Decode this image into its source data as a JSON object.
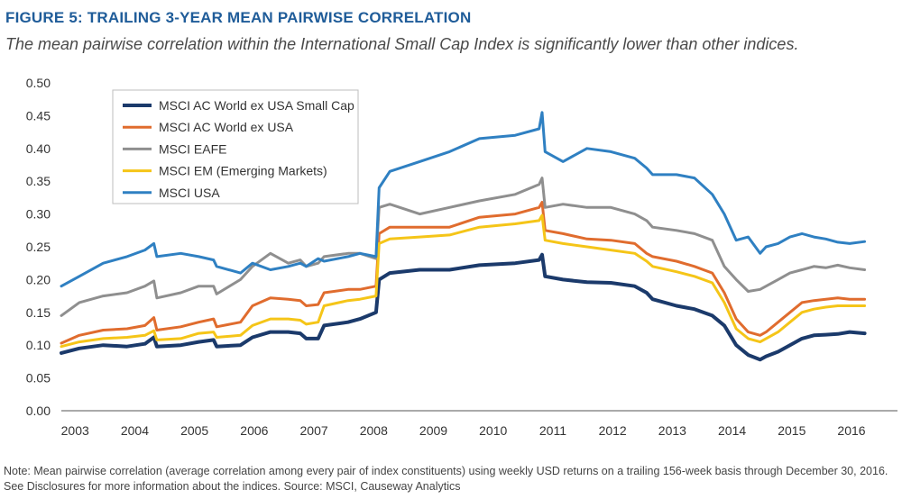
{
  "figure": {
    "title": "FIGURE 5: TRAILING 3-YEAR MEAN PAIRWISE CORRELATION",
    "subtitle": "The mean pairwise correlation within the International Small Cap Index is significantly lower than other indices.",
    "note": "Note: Mean pairwise correlation (average correlation among every pair of index constituents) using weekly USD returns on a trailing 156-week basis through December 30, 2016. See Disclosures for more information about the indices. Source: MSCI, Causeway Analytics"
  },
  "chart_data": {
    "type": "line",
    "title": "FIGURE 5: TRAILING 3-YEAR MEAN PAIRWISE CORRELATION",
    "xlabel": "",
    "ylabel": "",
    "ylim": [
      0,
      0.5
    ],
    "yticks": [
      "0.00",
      "0.05",
      "0.10",
      "0.15",
      "0.20",
      "0.25",
      "0.30",
      "0.35",
      "0.40",
      "0.45",
      "0.50"
    ],
    "xlim": [
      2003,
      2017
    ],
    "xticks": [
      "2003",
      "2004",
      "2005",
      "2006",
      "2007",
      "2008",
      "2009",
      "2010",
      "2011",
      "2012",
      "2013",
      "2014",
      "2015",
      "2016"
    ],
    "grid": false,
    "legend": "top-left",
    "series": [
      {
        "name": "MSCI AC World ex USA Small Cap",
        "color": "#1b3a6b",
        "points": [
          [
            2003.0,
            0.088
          ],
          [
            2003.3,
            0.095
          ],
          [
            2003.7,
            0.1
          ],
          [
            2004.1,
            0.098
          ],
          [
            2004.4,
            0.102
          ],
          [
            2004.55,
            0.112
          ],
          [
            2004.6,
            0.098
          ],
          [
            2005.0,
            0.1
          ],
          [
            2005.3,
            0.105
          ],
          [
            2005.55,
            0.108
          ],
          [
            2005.6,
            0.098
          ],
          [
            2006.0,
            0.1
          ],
          [
            2006.2,
            0.112
          ],
          [
            2006.5,
            0.12
          ],
          [
            2006.8,
            0.12
          ],
          [
            2007.0,
            0.118
          ],
          [
            2007.1,
            0.11
          ],
          [
            2007.3,
            0.11
          ],
          [
            2007.4,
            0.13
          ],
          [
            2007.8,
            0.135
          ],
          [
            2008.0,
            0.14
          ],
          [
            2008.27,
            0.15
          ],
          [
            2008.32,
            0.2
          ],
          [
            2008.5,
            0.21
          ],
          [
            2009.0,
            0.215
          ],
          [
            2009.5,
            0.215
          ],
          [
            2010.0,
            0.222
          ],
          [
            2010.6,
            0.225
          ],
          [
            2011.0,
            0.23
          ],
          [
            2011.05,
            0.238
          ],
          [
            2011.1,
            0.205
          ],
          [
            2011.4,
            0.2
          ],
          [
            2011.8,
            0.196
          ],
          [
            2012.2,
            0.195
          ],
          [
            2012.6,
            0.19
          ],
          [
            2012.8,
            0.18
          ],
          [
            2012.9,
            0.17
          ],
          [
            2013.3,
            0.16
          ],
          [
            2013.6,
            0.155
          ],
          [
            2013.9,
            0.145
          ],
          [
            2014.1,
            0.13
          ],
          [
            2014.3,
            0.1
          ],
          [
            2014.5,
            0.085
          ],
          [
            2014.7,
            0.078
          ],
          [
            2014.8,
            0.083
          ],
          [
            2015.0,
            0.09
          ],
          [
            2015.2,
            0.1
          ],
          [
            2015.4,
            0.11
          ],
          [
            2015.6,
            0.115
          ],
          [
            2015.8,
            0.116
          ],
          [
            2016.0,
            0.117
          ],
          [
            2016.2,
            0.12
          ],
          [
            2016.45,
            0.118
          ]
        ]
      },
      {
        "name": "MSCI AC World ex USA",
        "color": "#e06c2e",
        "points": [
          [
            2003.0,
            0.103
          ],
          [
            2003.3,
            0.115
          ],
          [
            2003.7,
            0.123
          ],
          [
            2004.1,
            0.125
          ],
          [
            2004.4,
            0.13
          ],
          [
            2004.55,
            0.142
          ],
          [
            2004.6,
            0.123
          ],
          [
            2005.0,
            0.128
          ],
          [
            2005.3,
            0.135
          ],
          [
            2005.55,
            0.14
          ],
          [
            2005.6,
            0.128
          ],
          [
            2006.0,
            0.135
          ],
          [
            2006.2,
            0.16
          ],
          [
            2006.5,
            0.172
          ],
          [
            2006.8,
            0.17
          ],
          [
            2007.0,
            0.168
          ],
          [
            2007.1,
            0.16
          ],
          [
            2007.3,
            0.162
          ],
          [
            2007.4,
            0.18
          ],
          [
            2007.8,
            0.185
          ],
          [
            2008.0,
            0.185
          ],
          [
            2008.27,
            0.19
          ],
          [
            2008.32,
            0.27
          ],
          [
            2008.5,
            0.28
          ],
          [
            2009.0,
            0.28
          ],
          [
            2009.5,
            0.28
          ],
          [
            2010.0,
            0.295
          ],
          [
            2010.6,
            0.3
          ],
          [
            2011.0,
            0.31
          ],
          [
            2011.05,
            0.318
          ],
          [
            2011.1,
            0.275
          ],
          [
            2011.4,
            0.27
          ],
          [
            2011.8,
            0.262
          ],
          [
            2012.2,
            0.26
          ],
          [
            2012.6,
            0.255
          ],
          [
            2012.8,
            0.24
          ],
          [
            2012.9,
            0.235
          ],
          [
            2013.3,
            0.228
          ],
          [
            2013.6,
            0.22
          ],
          [
            2013.9,
            0.21
          ],
          [
            2014.1,
            0.18
          ],
          [
            2014.3,
            0.14
          ],
          [
            2014.5,
            0.12
          ],
          [
            2014.7,
            0.115
          ],
          [
            2014.8,
            0.12
          ],
          [
            2015.0,
            0.135
          ],
          [
            2015.2,
            0.15
          ],
          [
            2015.4,
            0.165
          ],
          [
            2015.6,
            0.168
          ],
          [
            2015.8,
            0.17
          ],
          [
            2016.0,
            0.172
          ],
          [
            2016.2,
            0.17
          ],
          [
            2016.45,
            0.17
          ]
        ]
      },
      {
        "name": "MSCI EAFE",
        "color": "#8f8f8f",
        "points": [
          [
            2003.0,
            0.145
          ],
          [
            2003.3,
            0.165
          ],
          [
            2003.7,
            0.175
          ],
          [
            2004.1,
            0.18
          ],
          [
            2004.4,
            0.19
          ],
          [
            2004.55,
            0.198
          ],
          [
            2004.6,
            0.172
          ],
          [
            2005.0,
            0.18
          ],
          [
            2005.3,
            0.19
          ],
          [
            2005.55,
            0.19
          ],
          [
            2005.6,
            0.178
          ],
          [
            2006.0,
            0.2
          ],
          [
            2006.2,
            0.22
          ],
          [
            2006.5,
            0.24
          ],
          [
            2006.8,
            0.225
          ],
          [
            2007.0,
            0.23
          ],
          [
            2007.1,
            0.22
          ],
          [
            2007.3,
            0.225
          ],
          [
            2007.4,
            0.235
          ],
          [
            2007.8,
            0.24
          ],
          [
            2008.0,
            0.24
          ],
          [
            2008.27,
            0.232
          ],
          [
            2008.32,
            0.31
          ],
          [
            2008.5,
            0.315
          ],
          [
            2009.0,
            0.3
          ],
          [
            2009.5,
            0.31
          ],
          [
            2010.0,
            0.32
          ],
          [
            2010.6,
            0.33
          ],
          [
            2011.0,
            0.345
          ],
          [
            2011.05,
            0.355
          ],
          [
            2011.1,
            0.31
          ],
          [
            2011.4,
            0.315
          ],
          [
            2011.8,
            0.31
          ],
          [
            2012.2,
            0.31
          ],
          [
            2012.6,
            0.3
          ],
          [
            2012.8,
            0.29
          ],
          [
            2012.9,
            0.28
          ],
          [
            2013.3,
            0.275
          ],
          [
            2013.6,
            0.27
          ],
          [
            2013.9,
            0.26
          ],
          [
            2014.1,
            0.22
          ],
          [
            2014.3,
            0.2
          ],
          [
            2014.5,
            0.182
          ],
          [
            2014.7,
            0.185
          ],
          [
            2014.8,
            0.19
          ],
          [
            2015.0,
            0.2
          ],
          [
            2015.2,
            0.21
          ],
          [
            2015.4,
            0.215
          ],
          [
            2015.6,
            0.22
          ],
          [
            2015.8,
            0.218
          ],
          [
            2016.0,
            0.222
          ],
          [
            2016.2,
            0.218
          ],
          [
            2016.45,
            0.215
          ]
        ]
      },
      {
        "name": "MSCI EM (Emerging Markets)",
        "color": "#f5c518",
        "points": [
          [
            2003.0,
            0.098
          ],
          [
            2003.3,
            0.105
          ],
          [
            2003.7,
            0.11
          ],
          [
            2004.1,
            0.112
          ],
          [
            2004.4,
            0.115
          ],
          [
            2004.55,
            0.122
          ],
          [
            2004.6,
            0.108
          ],
          [
            2005.0,
            0.11
          ],
          [
            2005.3,
            0.118
          ],
          [
            2005.55,
            0.12
          ],
          [
            2005.6,
            0.112
          ],
          [
            2006.0,
            0.115
          ],
          [
            2006.2,
            0.13
          ],
          [
            2006.5,
            0.14
          ],
          [
            2006.8,
            0.14
          ],
          [
            2007.0,
            0.138
          ],
          [
            2007.1,
            0.132
          ],
          [
            2007.3,
            0.135
          ],
          [
            2007.4,
            0.16
          ],
          [
            2007.8,
            0.168
          ],
          [
            2008.0,
            0.17
          ],
          [
            2008.27,
            0.175
          ],
          [
            2008.32,
            0.255
          ],
          [
            2008.5,
            0.262
          ],
          [
            2009.0,
            0.265
          ],
          [
            2009.5,
            0.268
          ],
          [
            2010.0,
            0.28
          ],
          [
            2010.6,
            0.285
          ],
          [
            2011.0,
            0.29
          ],
          [
            2011.05,
            0.298
          ],
          [
            2011.1,
            0.26
          ],
          [
            2011.4,
            0.255
          ],
          [
            2011.8,
            0.25
          ],
          [
            2012.2,
            0.245
          ],
          [
            2012.6,
            0.24
          ],
          [
            2012.8,
            0.228
          ],
          [
            2012.9,
            0.22
          ],
          [
            2013.3,
            0.212
          ],
          [
            2013.6,
            0.205
          ],
          [
            2013.9,
            0.195
          ],
          [
            2014.1,
            0.165
          ],
          [
            2014.3,
            0.125
          ],
          [
            2014.5,
            0.11
          ],
          [
            2014.7,
            0.105
          ],
          [
            2014.8,
            0.11
          ],
          [
            2015.0,
            0.12
          ],
          [
            2015.2,
            0.135
          ],
          [
            2015.4,
            0.15
          ],
          [
            2015.6,
            0.155
          ],
          [
            2015.8,
            0.158
          ],
          [
            2016.0,
            0.16
          ],
          [
            2016.2,
            0.16
          ],
          [
            2016.45,
            0.16
          ]
        ]
      },
      {
        "name": "MSCI USA",
        "color": "#2f80c2",
        "points": [
          [
            2003.0,
            0.19
          ],
          [
            2003.3,
            0.205
          ],
          [
            2003.7,
            0.225
          ],
          [
            2004.1,
            0.235
          ],
          [
            2004.4,
            0.245
          ],
          [
            2004.55,
            0.255
          ],
          [
            2004.6,
            0.235
          ],
          [
            2005.0,
            0.24
          ],
          [
            2005.3,
            0.235
          ],
          [
            2005.55,
            0.23
          ],
          [
            2005.6,
            0.22
          ],
          [
            2006.0,
            0.21
          ],
          [
            2006.2,
            0.225
          ],
          [
            2006.5,
            0.215
          ],
          [
            2006.8,
            0.22
          ],
          [
            2007.0,
            0.225
          ],
          [
            2007.1,
            0.22
          ],
          [
            2007.3,
            0.232
          ],
          [
            2007.4,
            0.228
          ],
          [
            2007.8,
            0.235
          ],
          [
            2008.0,
            0.24
          ],
          [
            2008.27,
            0.235
          ],
          [
            2008.32,
            0.34
          ],
          [
            2008.5,
            0.365
          ],
          [
            2009.0,
            0.38
          ],
          [
            2009.5,
            0.395
          ],
          [
            2010.0,
            0.415
          ],
          [
            2010.6,
            0.42
          ],
          [
            2011.0,
            0.43
          ],
          [
            2011.05,
            0.455
          ],
          [
            2011.1,
            0.395
          ],
          [
            2011.4,
            0.38
          ],
          [
            2011.8,
            0.4
          ],
          [
            2012.2,
            0.395
          ],
          [
            2012.6,
            0.385
          ],
          [
            2012.8,
            0.37
          ],
          [
            2012.9,
            0.36
          ],
          [
            2013.3,
            0.36
          ],
          [
            2013.6,
            0.355
          ],
          [
            2013.9,
            0.33
          ],
          [
            2014.1,
            0.3
          ],
          [
            2014.3,
            0.26
          ],
          [
            2014.5,
            0.265
          ],
          [
            2014.7,
            0.24
          ],
          [
            2014.8,
            0.25
          ],
          [
            2015.0,
            0.255
          ],
          [
            2015.2,
            0.265
          ],
          [
            2015.4,
            0.27
          ],
          [
            2015.6,
            0.265
          ],
          [
            2015.8,
            0.262
          ],
          [
            2016.0,
            0.257
          ],
          [
            2016.2,
            0.255
          ],
          [
            2016.45,
            0.258
          ]
        ]
      }
    ]
  }
}
